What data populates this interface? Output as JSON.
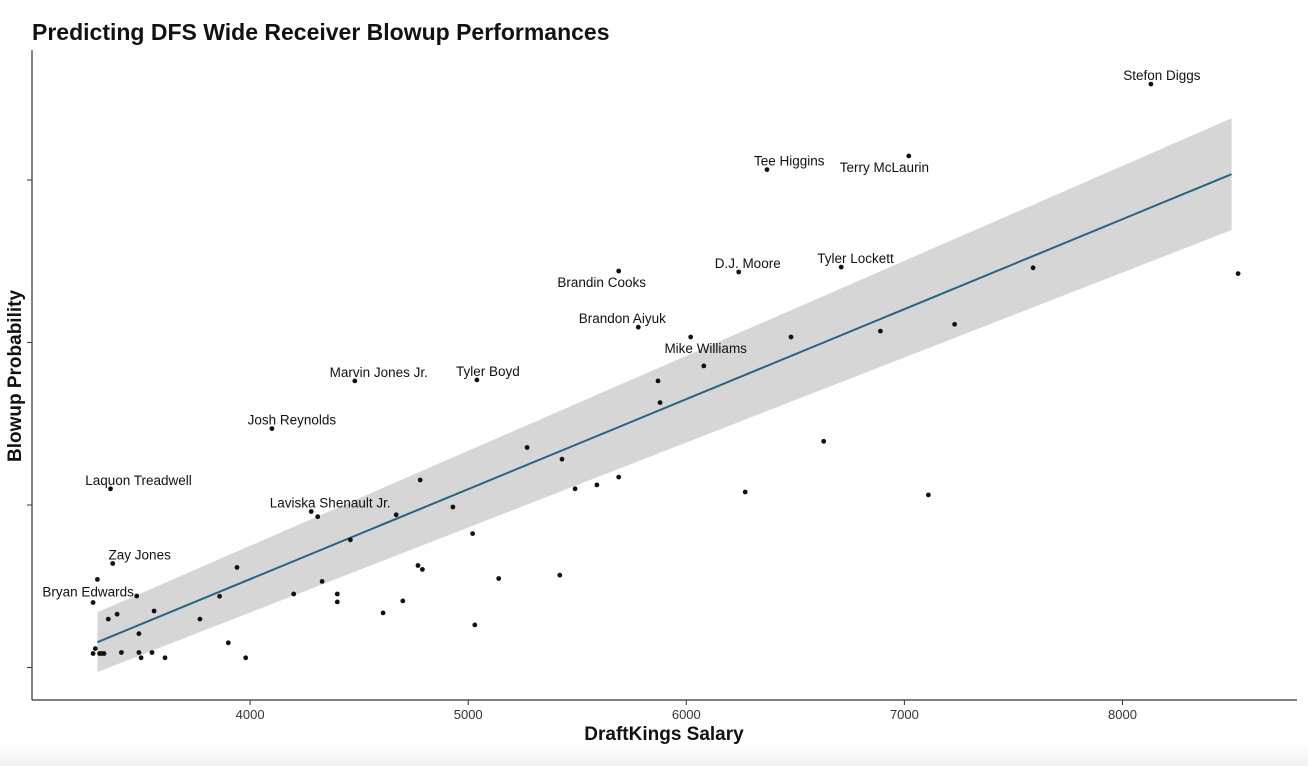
{
  "chart_data": {
    "type": "scatter",
    "title": "Predicting DFS Wide Receiver Blowup Performances",
    "xlabel": "DraftKings Salary",
    "ylabel": "Blowup Probability",
    "xlim": [
      3000,
      8800
    ],
    "ylim": [
      -0.1,
      1.9
    ],
    "xticks": [
      4000,
      5000,
      6000,
      7000,
      8000
    ],
    "yticks": [
      0,
      0.5,
      1.0,
      1.5
    ],
    "show_ytick_labels": false,
    "grid": false,
    "legend": "none",
    "colors": {
      "points": "#111111",
      "trend_line": "#2a6283",
      "confidence_band": "#d6d6d6",
      "axis": "#333333"
    },
    "trend_line": {
      "x": [
        3300,
        8500
      ],
      "y": [
        0.078,
        1.518
      ],
      "ci_lower": [
        -0.014,
        1.346
      ],
      "ci_upper": [
        0.17,
        1.69
      ]
    },
    "labeled_points": [
      {
        "name": "Stefon Diggs",
        "x": 8130,
        "y": 1.795
      },
      {
        "name": "Terry McLaurin",
        "x": 7020,
        "y": 1.574
      },
      {
        "name": "Tee Higgins",
        "x": 6370,
        "y": 1.532
      },
      {
        "name": "Tyler Lockett",
        "x": 6710,
        "y": 1.232
      },
      {
        "name": "D.J. Moore",
        "x": 6240,
        "y": 1.217
      },
      {
        "name": "Brandin Cooks",
        "x": 5690,
        "y": 1.22
      },
      {
        "name": "Brandon Aiyuk",
        "x": 5780,
        "y": 1.047
      },
      {
        "name": "Mike Williams",
        "x": 6020,
        "y": 1.017
      },
      {
        "name": "Tyler Boyd",
        "x": 5040,
        "y": 0.885
      },
      {
        "name": "Marvin Jones Jr.",
        "x": 4480,
        "y": 0.882
      },
      {
        "name": "Josh Reynolds",
        "x": 4100,
        "y": 0.735
      },
      {
        "name": "Laquon Treadwell",
        "x": 3360,
        "y": 0.55
      },
      {
        "name": "Laviska Shenault Jr.",
        "x": 4280,
        "y": 0.48
      },
      {
        "name": "Zay Jones",
        "x": 3370,
        "y": 0.32
      },
      {
        "name": "Bryan Edwards",
        "x": 3280,
        "y": 0.2
      }
    ],
    "points": [
      {
        "x": 8530,
        "y": 1.212
      },
      {
        "x": 7590,
        "y": 1.23
      },
      {
        "x": 7230,
        "y": 1.056
      },
      {
        "x": 6890,
        "y": 1.035
      },
      {
        "x": 6480,
        "y": 1.017
      },
      {
        "x": 6080,
        "y": 0.928
      },
      {
        "x": 5870,
        "y": 0.882
      },
      {
        "x": 5880,
        "y": 0.815
      },
      {
        "x": 6630,
        "y": 0.696
      },
      {
        "x": 6270,
        "y": 0.54
      },
      {
        "x": 7110,
        "y": 0.531
      },
      {
        "x": 5270,
        "y": 0.677
      },
      {
        "x": 5430,
        "y": 0.641
      },
      {
        "x": 5690,
        "y": 0.586
      },
      {
        "x": 5590,
        "y": 0.562
      },
      {
        "x": 5490,
        "y": 0.55
      },
      {
        "x": 4780,
        "y": 0.577
      },
      {
        "x": 4670,
        "y": 0.47
      },
      {
        "x": 4930,
        "y": 0.494
      },
      {
        "x": 5020,
        "y": 0.412
      },
      {
        "x": 4310,
        "y": 0.464
      },
      {
        "x": 4460,
        "y": 0.393
      },
      {
        "x": 4770,
        "y": 0.314
      },
      {
        "x": 4790,
        "y": 0.302
      },
      {
        "x": 5140,
        "y": 0.274
      },
      {
        "x": 5420,
        "y": 0.284
      },
      {
        "x": 4330,
        "y": 0.265
      },
      {
        "x": 4400,
        "y": 0.226
      },
      {
        "x": 4400,
        "y": 0.202
      },
      {
        "x": 4200,
        "y": 0.226
      },
      {
        "x": 4700,
        "y": 0.205
      },
      {
        "x": 4610,
        "y": 0.168
      },
      {
        "x": 5030,
        "y": 0.131
      },
      {
        "x": 3940,
        "y": 0.308
      },
      {
        "x": 3860,
        "y": 0.219
      },
      {
        "x": 3770,
        "y": 0.149
      },
      {
        "x": 3900,
        "y": 0.076
      },
      {
        "x": 3980,
        "y": 0.03
      },
      {
        "x": 3560,
        "y": 0.174
      },
      {
        "x": 3490,
        "y": 0.104
      },
      {
        "x": 3490,
        "y": 0.046
      },
      {
        "x": 3550,
        "y": 0.046
      },
      {
        "x": 3500,
        "y": 0.03
      },
      {
        "x": 3610,
        "y": 0.03
      },
      {
        "x": 3480,
        "y": 0.22
      },
      {
        "x": 3390,
        "y": 0.164
      },
      {
        "x": 3350,
        "y": 0.149
      },
      {
        "x": 3410,
        "y": 0.046
      },
      {
        "x": 3300,
        "y": 0.271
      },
      {
        "x": 3290,
        "y": 0.058
      },
      {
        "x": 3280,
        "y": 0.043
      },
      {
        "x": 3310,
        "y": 0.043
      },
      {
        "x": 3320,
        "y": 0.043
      },
      {
        "x": 3330,
        "y": 0.043
      }
    ]
  }
}
